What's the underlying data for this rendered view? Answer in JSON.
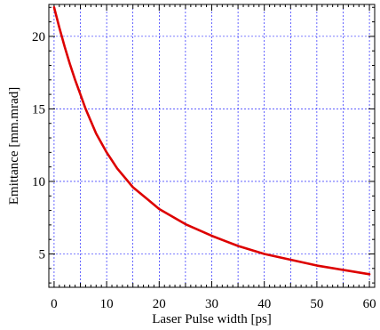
{
  "chart_data": {
    "type": "line",
    "title": "",
    "xlabel": "Laser Pulse width [ps]",
    "ylabel": "Emittance [mm.mrad]",
    "xlim": [
      -1,
      61
    ],
    "ylim": [
      2.7,
      22.2
    ],
    "x_ticks": [
      0,
      10,
      20,
      30,
      40,
      50,
      60
    ],
    "y_ticks": [
      5,
      10,
      15,
      20
    ],
    "x_grid_step": 5,
    "y_grid_step": 5,
    "grid": true,
    "colors": {
      "line": "#dd0000",
      "grid": "#0000ff",
      "axes": "#000000",
      "background": "#ffffff"
    },
    "series": [
      {
        "x": [
          0,
          1,
          2,
          3,
          4,
          5,
          6,
          8,
          10,
          12,
          15,
          18,
          20,
          25,
          30,
          35,
          40,
          45,
          50,
          55,
          60
        ],
        "y": [
          22.0,
          20.6,
          19.3,
          18.1,
          17.0,
          16.0,
          15.0,
          13.3,
          12.0,
          10.9,
          9.6,
          8.7,
          8.1,
          7.05,
          6.25,
          5.55,
          5.0,
          4.6,
          4.2,
          3.9,
          3.6
        ]
      }
    ]
  }
}
